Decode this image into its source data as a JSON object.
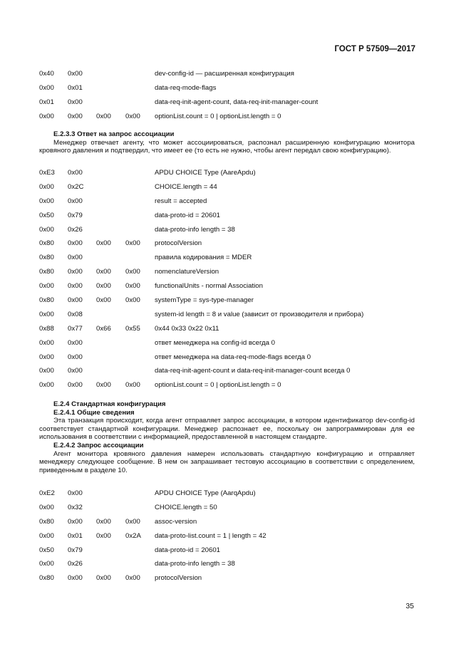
{
  "header": "ГОСТ Р 57509—2017",
  "table1": [
    [
      "0x40",
      "0x00",
      "",
      "",
      "dev-config-id — расширенная конфигурация"
    ],
    [
      "0x00",
      "0x01",
      "",
      "",
      "data-req-mode-flags"
    ],
    [
      "0x01",
      "0x00",
      "",
      "",
      "data-req-init-agent-count, data-req-init-manager-count"
    ],
    [
      "0x00",
      "0x00",
      "0x00",
      "0x00",
      "optionList.count = 0 | optionList.length = 0"
    ]
  ],
  "sec1": {
    "heading": "E.2.3.3 Ответ на запрос ассоциации",
    "para": "Менеджер отвечает агенту, что может ассоциироваться, распознал расширенную конфигурацию монитора кровяного давления и подтвердил, что имеет ее (то есть не нужно, чтобы агент передал свою конфигурацию)."
  },
  "table2": [
    [
      "0xE3",
      "0x00",
      "",
      "",
      "APDU CHOICE Type (AareApdu)"
    ],
    [
      "0x00",
      "0x2C",
      "",
      "",
      "CHOICE.length = 44"
    ],
    [
      "0x00",
      "0x00",
      "",
      "",
      "result = accepted"
    ],
    [
      "0x50",
      "0x79",
      "",
      "",
      "data-proto-id = 20601"
    ],
    [
      "0x00",
      "0x26",
      "",
      "",
      "data-proto-info length = 38"
    ],
    [
      "0x80",
      "0x00",
      "0x00",
      "0x00",
      "protocolVersion"
    ],
    [
      "0x80",
      "0x00",
      "",
      "",
      "правила кодирования = MDER"
    ],
    [
      "0x80",
      "0x00",
      "0x00",
      "0x00",
      "nomenclatureVersion"
    ],
    [
      "0x00",
      "0x00",
      "0x00",
      "0x00",
      "functionalUnits - normal Association"
    ],
    [
      "0x80",
      "0x00",
      "0x00",
      "0x00",
      "systemType = sys-type-manager"
    ],
    [
      "0x00",
      "0x08",
      "",
      "",
      "system-id length = 8 и value (зависит от производителя и прибора)"
    ],
    [
      "0x88",
      "0x77",
      "0x66",
      "0x55",
      "0x44 0x33 0x22 0x11"
    ],
    [
      "0x00",
      "0x00",
      "",
      "",
      "ответ менеджера на config-id всегда 0"
    ],
    [
      "0x00",
      "0x00",
      "",
      "",
      "ответ менеджера на data-req-mode-flags всегда 0"
    ],
    [
      "0x00",
      "0x00",
      "",
      "",
      "data-req-init-agent-count и data-req-init-manager-count всегда 0"
    ],
    [
      "0x00",
      "0x00",
      "0x00",
      "0x00",
      "optionList.count = 0 | optionList.length = 0"
    ]
  ],
  "sec2": {
    "h1": "E.2.4 Стандартная конфигурация",
    "h2": "E.2.4.1 Общие сведения",
    "p1": "Эта транзакция происходит, когда агент отправляет запрос ассоциации, в котором идентификатор dev-config-id соответствует стандартной конфигурации. Менеджер распознает ее, поскольку он запрограммирован для ее использования в соответствии с информацией, предоставленной в настоящем стандарте.",
    "h3": "E.2.4.2 Запрос ассоциации",
    "p2": "Агент монитора кровяного давления намерен использовать стандартную конфигурацию и отправляет менеджеру следующее сообщение. В нем он запрашивает тестовую ассоциацию в соответствии с определением, приведенным в разделе 10."
  },
  "table3": [
    [
      "0xE2",
      "0x00",
      "",
      "",
      "APDU CHOICE Type (AarqApdu)"
    ],
    [
      "0x00",
      "0x32",
      "",
      "",
      "CHOICE.length = 50"
    ],
    [
      "0x80",
      "0x00",
      "0x00",
      "0x00",
      "assoc-version"
    ],
    [
      "0x00",
      "0x01",
      "0x00",
      "0x2A",
      "data-proto-list.count = 1 | length = 42"
    ],
    [
      "0x50",
      "0x79",
      "",
      "",
      "data-proto-id = 20601"
    ],
    [
      "0x00",
      "0x26",
      "",
      "",
      "data-proto-info length = 38"
    ],
    [
      "0x80",
      "0x00",
      "0x00",
      "0x00",
      "protocolVersion"
    ]
  ],
  "page_number": "35"
}
